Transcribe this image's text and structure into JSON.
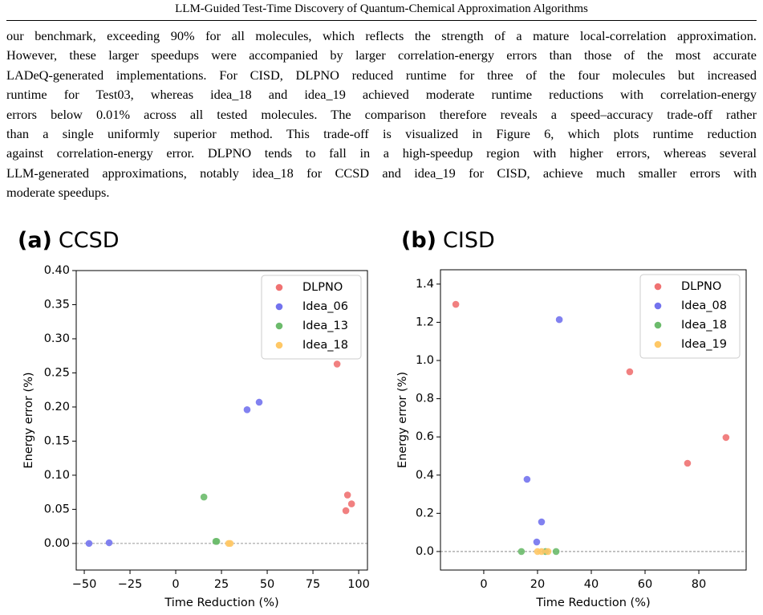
{
  "header": {
    "title": "LLM-Guided Test-Time Discovery of Quantum-Chemical Approximation Algorithms"
  },
  "paragraph": {
    "lines": [
      "our benchmark, exceeding 90% for all molecules, which reflects the strength of a mature local-correlation approximation.",
      "However, these larger speedups were accompanied by larger correlation-energy errors than those of the most accurate",
      "LADeQ-generated implementations. For CISD, DLPNO reduced runtime for three of the four molecules but increased",
      "runtime for Test03, whereas idea_18 and idea_19 achieved moderate runtime reductions with correlation-energy",
      "errors below 0.01% across all tested molecules. The comparison therefore reveals a speed–accuracy trade-off rather",
      "than a single uniformly superior method.  This trade-off is visualized in Figure 6, which plots runtime reduction",
      "against correlation-energy error. DLPNO tends to fall in a high-speedup region with higher errors, whereas several",
      "LLM-generated approximations, notably idea_18 for CCSD and idea_19 for CISD, achieve much smaller errors with",
      "moderate speedups."
    ]
  },
  "chart_data": [
    {
      "type": "scatter",
      "panel_label": "(a)",
      "title": "CCSD",
      "x_label": "Time Reduction (%)",
      "y_label": "Energy error (%)",
      "xlim": [
        -54.4,
        104.8
      ],
      "ylim": [
        -0.039,
        0.4
      ],
      "xticks": [
        {
          "value": -50,
          "label": "−50"
        },
        {
          "value": -25,
          "label": "−25"
        },
        0,
        25,
        50,
        75,
        100
      ],
      "yticks": [
        {
          "value": 0,
          "label": "0.00"
        },
        {
          "value": 0.05,
          "label": "0.05"
        },
        {
          "value": 0.1,
          "label": "0.10"
        },
        {
          "value": 0.15,
          "label": "0.15"
        },
        {
          "value": 0.2,
          "label": "0.20"
        },
        {
          "value": 0.25,
          "label": "0.25"
        },
        {
          "value": 0.3,
          "label": "0.30"
        },
        {
          "value": 0.35,
          "label": "0.35"
        },
        {
          "value": 0.4,
          "label": "0.40"
        }
      ],
      "reference_line": 0,
      "legend": "upper right",
      "grid": false,
      "series": [
        {
          "name": "DLPNO",
          "color": "#f07272",
          "x": [
            88.2,
            93.9,
            96.1,
            93.0
          ],
          "values": [
            0.263,
            0.071,
            0.058,
            0.048
          ]
        },
        {
          "name": "Idea_06",
          "color": "#7373ee",
          "x": [
            -47.4,
            -36.4,
            39.0,
            45.6
          ],
          "values": [
            0.0,
            0.001,
            0.196,
            0.207
          ]
        },
        {
          "name": "Idea_13",
          "color": "#6cbb6c",
          "x": [
            15.4,
            21.9,
            22.4
          ],
          "values": [
            0.068,
            0.003,
            0.003
          ]
        },
        {
          "name": "Idea_18",
          "color": "#ffc866",
          "x": [
            28.9,
            29.8
          ],
          "values": [
            0.0,
            0.0
          ]
        }
      ]
    },
    {
      "type": "scatter",
      "panel_label": "(b)",
      "title": "CISD",
      "x_label": "Time Reduction (%)",
      "y_label": "Energy error (%)",
      "xlim": [
        -16.1,
        97.6
      ],
      "ylim": [
        -0.097,
        1.475
      ],
      "xticks": [
        0,
        20,
        40,
        60,
        80
      ],
      "yticks": [
        {
          "value": 0,
          "label": "0.0"
        },
        {
          "value": 0.2,
          "label": "0.2"
        },
        {
          "value": 0.4,
          "label": "0.4"
        },
        {
          "value": 0.6,
          "label": "0.6"
        },
        {
          "value": 0.8,
          "label": "0.8"
        },
        {
          "value": 1.0,
          "label": "1.0"
        },
        {
          "value": 1.2,
          "label": "1.2"
        },
        {
          "value": 1.4,
          "label": "1.4"
        }
      ],
      "reference_line": 0,
      "legend": "upper right",
      "grid": false,
      "series": [
        {
          "name": "DLPNO",
          "color": "#f07272",
          "x": [
            -10.4,
            54.3,
            75.8,
            90.1
          ],
          "values": [
            1.294,
            0.941,
            0.462,
            0.597
          ]
        },
        {
          "name": "Idea_08",
          "color": "#7373ee",
          "x": [
            28.1,
            16.1,
            21.5,
            19.7
          ],
          "values": [
            1.214,
            0.378,
            0.155,
            0.05
          ]
        },
        {
          "name": "Idea_18",
          "color": "#6cbb6c",
          "x": [
            14.0,
            26.9,
            23.0
          ],
          "values": [
            0.0,
            0.0,
            0.0
          ]
        },
        {
          "name": "Idea_19",
          "color": "#ffc866",
          "x": [
            20.0,
            21.5,
            23.9
          ],
          "values": [
            0.0,
            0.0,
            0.0
          ]
        }
      ]
    }
  ]
}
